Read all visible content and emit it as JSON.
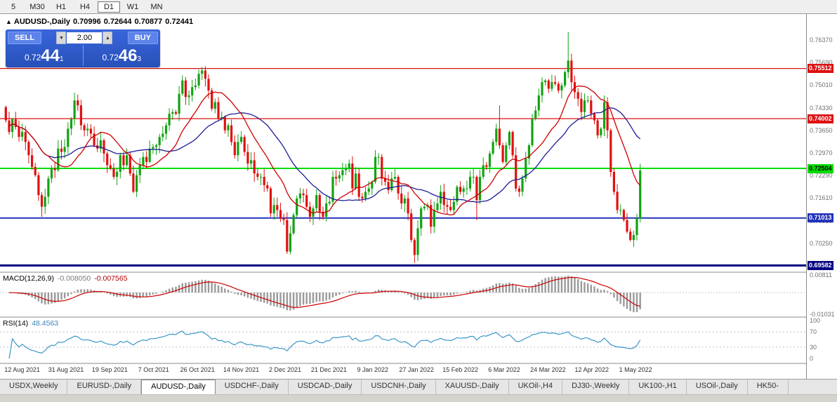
{
  "toolbar": {
    "items": [
      {
        "label": "5",
        "active": false
      },
      {
        "label": "M30",
        "active": false
      },
      {
        "label": "H1",
        "active": false
      },
      {
        "label": "H4",
        "active": false
      },
      {
        "label": "D1",
        "active": true
      },
      {
        "label": "W1",
        "active": false
      },
      {
        "label": "MN",
        "active": false
      }
    ]
  },
  "chart": {
    "title": {
      "arrow": "▲",
      "symbol": "AUDUSD-,Daily",
      "open": "0.70996",
      "high": "0.72644",
      "low": "0.70877",
      "close": "0.72441"
    },
    "trade_panel": {
      "sell_label": "SELL",
      "buy_label": "BUY",
      "volume": "2.00",
      "spin_up": "▲",
      "spin_down": "▼",
      "sell": {
        "big": "0.72",
        "large": "44",
        "sup": "1"
      },
      "buy": {
        "big": "0.72",
        "large": "46",
        "sup": "3"
      }
    },
    "range": {
      "min": 0.6938,
      "max": 0.7715
    },
    "price_axis": {
      "ticks": [
        "0.76370",
        "0.75690",
        "0.75010",
        "0.74330",
        "0.73650",
        "0.72970",
        "0.72290",
        "0.71610",
        "0.70930",
        "0.70250",
        "0.69570"
      ]
    },
    "levels": [
      {
        "value": 0.75512,
        "label": "0.75512",
        "color": "#dd1111",
        "text": "#ffffff",
        "width": 1.2
      },
      {
        "value": 0.74002,
        "label": "0.74002",
        "color": "#dd1111",
        "text": "#ffffff",
        "width": 1.2
      },
      {
        "value": 0.72504,
        "label": "0.72504",
        "color": "#00dd00",
        "text": "#000000",
        "width": 2
      },
      {
        "value": 0.71013,
        "label": "0.71013",
        "color": "#2233bb",
        "text": "#ffffff",
        "width": 2
      },
      {
        "value": 0.69582,
        "label": "0.69582",
        "color": "#000080",
        "text": "#ffffff",
        "width": 3
      }
    ]
  },
  "chart_data": {
    "type": "candlestick",
    "title": "AUDUSD-,Daily",
    "x_labels": [
      "12 Aug 2021",
      "31 Aug 2021",
      "19 Sep 2021",
      "7 Oct 2021",
      "26 Oct 2021",
      "14 Nov 2021",
      "2 Dec 2021",
      "21 Dec 2021",
      "9 Jan 2022",
      "27 Jan 2022",
      "15 Feb 2022",
      "6 Mar 2022",
      "24 Mar 2022",
      "12 Apr 2022",
      "1 May 2022"
    ],
    "first_open": 0.7435,
    "closes": [
      0.7395,
      0.736,
      0.7398,
      0.7375,
      0.7345,
      0.736,
      0.733,
      0.729,
      0.7255,
      0.723,
      0.717,
      0.7135,
      0.7165,
      0.722,
      0.725,
      0.7245,
      0.731,
      0.73,
      0.7315,
      0.737,
      0.74,
      0.7455,
      0.744,
      0.738,
      0.7365,
      0.737,
      0.7355,
      0.732,
      0.731,
      0.7335,
      0.7295,
      0.726,
      0.725,
      0.7225,
      0.724,
      0.729,
      0.726,
      0.729,
      0.7235,
      0.718,
      0.723,
      0.726,
      0.7285,
      0.727,
      0.731,
      0.7315,
      0.732,
      0.7345,
      0.7355,
      0.738,
      0.7415,
      0.742,
      0.7415,
      0.7475,
      0.7515,
      0.7465,
      0.747,
      0.7495,
      0.75,
      0.7535,
      0.7545,
      0.752,
      0.7485,
      0.743,
      0.745,
      0.74,
      0.7405,
      0.7365,
      0.738,
      0.733,
      0.729,
      0.733,
      0.7345,
      0.73,
      0.7265,
      0.7275,
      0.7235,
      0.7225,
      0.7225,
      0.72,
      0.719,
      0.7115,
      0.714,
      0.7125,
      0.71,
      0.7095,
      0.7,
      0.7055,
      0.711,
      0.716,
      0.7175,
      0.717,
      0.7135,
      0.7105,
      0.713,
      0.717,
      0.712,
      0.7105,
      0.7145,
      0.715,
      0.7225,
      0.722,
      0.723,
      0.7245,
      0.725,
      0.7265,
      0.719,
      0.7235,
      0.7165,
      0.716,
      0.718,
      0.719,
      0.721,
      0.7285,
      0.7285,
      0.722,
      0.721,
      0.7185,
      0.722,
      0.7225,
      0.7175,
      0.7145,
      0.716,
      0.7115,
      0.7035,
      0.699,
      0.707,
      0.713,
      0.7135,
      0.714,
      0.7075,
      0.7125,
      0.7145,
      0.718,
      0.714,
      0.7135,
      0.7125,
      0.715,
      0.7195,
      0.718,
      0.719,
      0.719,
      0.7225,
      0.7225,
      0.7155,
      0.7225,
      0.726,
      0.7255,
      0.7295,
      0.733,
      0.737,
      0.732,
      0.727,
      0.732,
      0.736,
      0.729,
      0.719,
      0.718,
      0.722,
      0.728,
      0.732,
      0.74,
      0.7425,
      0.747,
      0.751,
      0.7515,
      0.749,
      0.751,
      0.7505,
      0.7485,
      0.75,
      0.754,
      0.7575,
      0.751,
      0.748,
      0.746,
      0.742,
      0.7455,
      0.7455,
      0.7415,
      0.7395,
      0.735,
      0.737,
      0.745,
      0.7365,
      0.724,
      0.718,
      0.7125,
      0.7125,
      0.7095,
      0.706,
      0.7035,
      0.705,
      0.71,
      0.72441
    ],
    "wick_overrides": {
      "11": {
        "low": 0.7105
      },
      "21": {
        "high": 0.7478
      },
      "60": {
        "high": 0.7556
      },
      "86": {
        "low": 0.6993
      },
      "125": {
        "low": 0.6966
      },
      "144": {
        "low": 0.7095
      },
      "151": {
        "high": 0.744
      },
      "157": {
        "low": 0.7165
      },
      "172": {
        "high": 0.7661
      },
      "191": {
        "low": 0.703
      },
      "194": {
        "high": 0.72644,
        "low": 0.70877
      }
    },
    "ma_fast_period": 14,
    "ma_slow_period": 28
  },
  "macd": {
    "title": "MACD(12,26,9)",
    "value_main": "-0.008050",
    "value_signal": "-0.007565",
    "axis_max": "0.00811",
    "axis_min": "-0.01031",
    "range": {
      "min": -0.0115,
      "max": 0.0095
    },
    "params": [
      12,
      26,
      9
    ]
  },
  "rsi": {
    "title": "RSI(14)",
    "value": "48.4563",
    "axis": [
      "100",
      "70",
      "30",
      "0"
    ],
    "levels": [
      70,
      30
    ],
    "period": 14
  },
  "tabs": [
    {
      "label": "USDX,Weekly",
      "active": false
    },
    {
      "label": "EURUSD-,Daily",
      "active": false
    },
    {
      "label": "AUDUSD-,Daily",
      "active": true
    },
    {
      "label": "USDCHF-,Daily",
      "active": false
    },
    {
      "label": "USDCAD-,Daily",
      "active": false
    },
    {
      "label": "USDCNH-,Daily",
      "active": false
    },
    {
      "label": "XAUUSD-,Daily",
      "active": false
    },
    {
      "label": "UKOil-,H4",
      "active": false
    },
    {
      "label": "DJ30-,Weekly",
      "active": false
    },
    {
      "label": "UK100-,H1",
      "active": false
    },
    {
      "label": "USOil-,Daily",
      "active": false
    },
    {
      "label": "HK50-",
      "active": false
    }
  ],
  "colors": {
    "up": "#12a312",
    "down": "#e01010",
    "ma_fast": "#cc0000",
    "ma_slow": "#1c1c96",
    "macd_hist": "#9a9a9a",
    "macd_signal": "#cc0000",
    "rsi_line": "#3a96c8",
    "panel_blue": "#2b57d0"
  }
}
